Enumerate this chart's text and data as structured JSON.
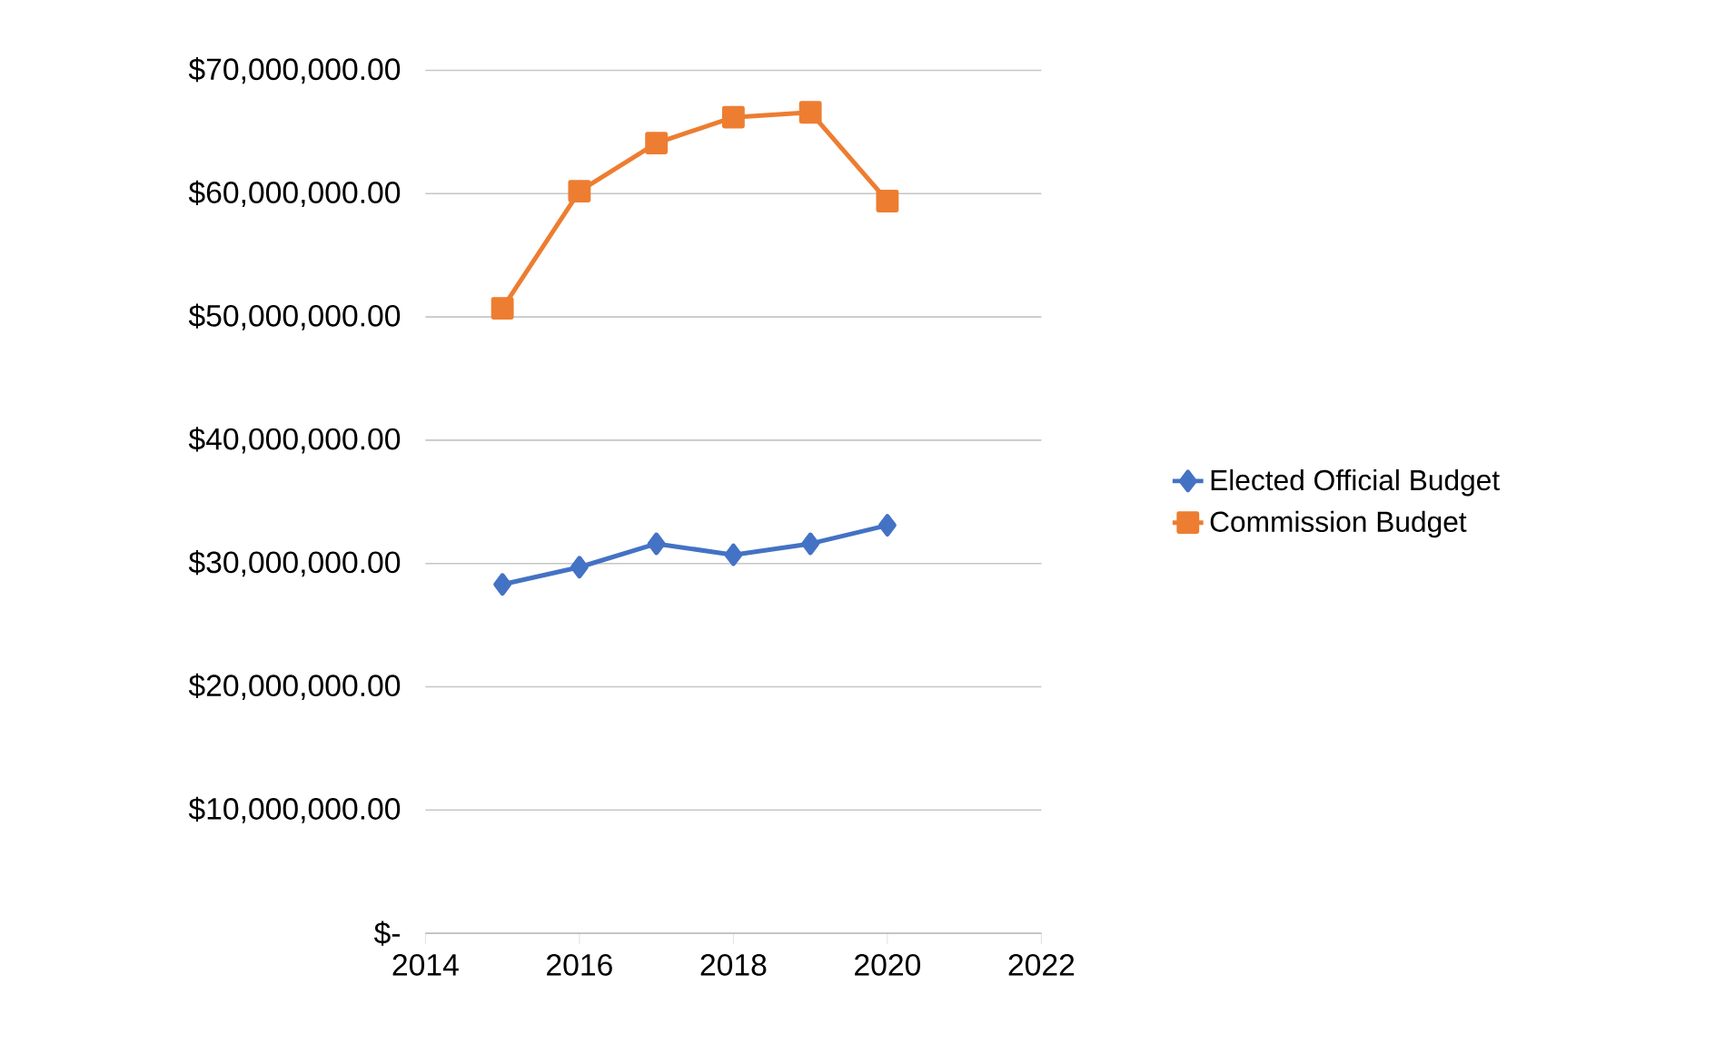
{
  "chart_data": {
    "type": "line",
    "x": [
      2015,
      2016,
      2017,
      2018,
      2019,
      2020
    ],
    "series": [
      {
        "name": "Elected Official Budget",
        "color": "#4472c4",
        "marker": "diamond",
        "values": [
          28300000,
          29700000,
          31600000,
          30700000,
          31600000,
          33100000
        ]
      },
      {
        "name": "Commission Budget",
        "color": "#ed7d31",
        "marker": "square",
        "values": [
          50700000,
          60200000,
          64100000,
          66200000,
          66600000,
          59400000
        ]
      }
    ],
    "xlim": [
      2014,
      2022
    ],
    "xticks": [
      2014,
      2016,
      2018,
      2020,
      2022
    ],
    "ylim": [
      0,
      70000000
    ],
    "yticks": [
      {
        "value": 0,
        "label": "$-"
      },
      {
        "value": 10000000,
        "label": "$10,000,000.00"
      },
      {
        "value": 20000000,
        "label": "$20,000,000.00"
      },
      {
        "value": 30000000,
        "label": "$30,000,000.00"
      },
      {
        "value": 40000000,
        "label": "$40,000,000.00"
      },
      {
        "value": 50000000,
        "label": "$50,000,000.00"
      },
      {
        "value": 60000000,
        "label": "$60,000,000.00"
      },
      {
        "value": 70000000,
        "label": "$70,000,000.00"
      }
    ],
    "grid": "y",
    "legend": "right",
    "line_style": "solid"
  }
}
